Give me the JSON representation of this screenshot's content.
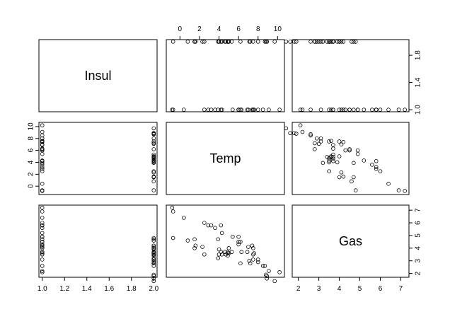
{
  "chart_data": {
    "type": "scatter",
    "title": "",
    "variables": [
      "Insul",
      "Temp",
      "Gas"
    ],
    "ranges": {
      "Insul": [
        0.97,
        2.03
      ],
      "Temp": [
        -1.4,
        10.7
      ],
      "Gas": [
        1.7,
        7.4
      ]
    },
    "ticks": {
      "Insul": [
        1.0,
        1.2,
        1.4,
        1.6,
        1.8,
        2.0
      ],
      "Insul_right": [
        1.0,
        1.4,
        1.8
      ],
      "Temp": [
        0,
        2,
        4,
        6,
        8,
        10
      ],
      "Gas": [
        2,
        3,
        4,
        5,
        6,
        7
      ]
    },
    "tick_labels": {
      "Insul": [
        "1.0",
        "1.2",
        "1.4",
        "1.6",
        "1.8",
        "2.0"
      ],
      "Insul_right": [
        "1.0",
        "1.4",
        "1.8"
      ],
      "Temp": [
        "0",
        "2",
        "4",
        "6",
        "8",
        "10"
      ],
      "Gas": [
        "2",
        "3",
        "4",
        "5",
        "6",
        "7"
      ]
    },
    "grid": false,
    "legend": "none",
    "point_symbol": "open-circle",
    "data": {
      "Insul": [
        1,
        1,
        1,
        1,
        1,
        1,
        1,
        1,
        1,
        1,
        1,
        1,
        1,
        1,
        1,
        1,
        1,
        1,
        1,
        1,
        1,
        1,
        1,
        1,
        1,
        1,
        2,
        2,
        2,
        2,
        2,
        2,
        2,
        2,
        2,
        2,
        2,
        2,
        2,
        2,
        2,
        2,
        2,
        2,
        2,
        2,
        2,
        2,
        2,
        2,
        2,
        2,
        2,
        2,
        2,
        2
      ],
      "Temp": [
        -0.8,
        -0.7,
        0.4,
        2.5,
        2.9,
        3.2,
        3.6,
        3.9,
        4.2,
        4.3,
        5.4,
        6.0,
        6.0,
        6.0,
        6.2,
        6.3,
        6.9,
        7.0,
        7.4,
        7.5,
        7.5,
        7.6,
        8.0,
        8.5,
        9.1,
        10.2,
        -0.7,
        0.8,
        1.5,
        1.5,
        1.6,
        2.3,
        2.5,
        3.9,
        4.0,
        4.0,
        4.2,
        4.3,
        4.6,
        4.7,
        4.9,
        4.9,
        4.9,
        5.0,
        5.0,
        5.3,
        6.2,
        7.1,
        7.2,
        7.5,
        8.0,
        8.7,
        8.8,
        8.9,
        8.9,
        9.7
      ],
      "Gas": [
        7.2,
        6.9,
        6.4,
        6.0,
        5.8,
        5.8,
        5.6,
        4.7,
        5.8,
        5.2,
        4.9,
        4.9,
        4.3,
        4.5,
        4.5,
        3.7,
        3.7,
        4.1,
        4.2,
        3.5,
        4.0,
        3.6,
        3.1,
        2.6,
        2.2,
        2.1,
        4.8,
        4.6,
        4.7,
        4.0,
        4.2,
        4.1,
        3.5,
        3.2,
        3.9,
        3.5,
        3.7,
        3.5,
        3.7,
        3.5,
        3.4,
        3.7,
        3.6,
        4.0,
        3.6,
        3.7,
        2.8,
        3.0,
        2.8,
        3.1,
        2.9,
        2.6,
        1.9,
        1.8,
        1.6,
        1.4
      ]
    }
  }
}
